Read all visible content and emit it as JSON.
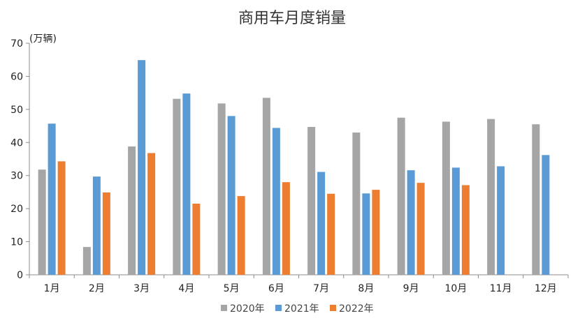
{
  "chart_data": {
    "type": "bar",
    "title": "商用车月度销量",
    "ylabel": "(万辆)",
    "xlabel": "",
    "ylim": [
      0,
      70
    ],
    "yticks": [
      0,
      10,
      20,
      30,
      40,
      50,
      60,
      70
    ],
    "categories": [
      "1月",
      "2月",
      "3月",
      "4月",
      "5月",
      "6月",
      "7月",
      "8月",
      "9月",
      "10月",
      "11月",
      "12月"
    ],
    "series": [
      {
        "name": "2020年",
        "color": "#a5a5a5",
        "values": [
          31.8,
          8.4,
          38.8,
          53.2,
          51.8,
          53.5,
          44.7,
          43.0,
          47.5,
          46.3,
          47.1,
          45.5
        ]
      },
      {
        "name": "2021年",
        "color": "#5b9bd5",
        "values": [
          45.7,
          29.7,
          64.9,
          54.8,
          48.0,
          44.4,
          31.1,
          24.6,
          31.6,
          32.4,
          32.8,
          36.2
        ]
      },
      {
        "name": "2022年",
        "color": "#ed7d31",
        "values": [
          34.3,
          24.9,
          36.8,
          21.5,
          23.8,
          28.0,
          24.5,
          25.7,
          27.8,
          27.1,
          null,
          null
        ]
      }
    ],
    "grid": false,
    "legend_position": "bottom"
  }
}
